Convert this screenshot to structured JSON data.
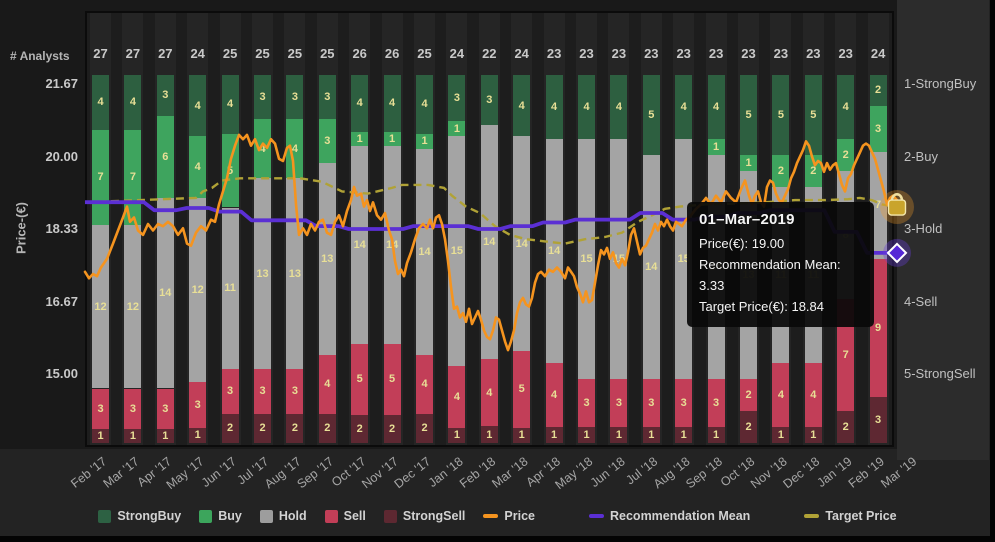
{
  "header": {
    "analysts_label": "# Analysts"
  },
  "axes": {
    "y_left": {
      "title": "Price-(€)",
      "ticks": [
        "21.67",
        "20.00",
        "18.33",
        "16.67",
        "15.00"
      ]
    },
    "y_right": {
      "labels": [
        "1-StrongBuy",
        "2-Buy",
        "3-Hold",
        "4-Sell",
        "5-StrongSell"
      ]
    }
  },
  "tooltip": {
    "date": "01–Mar–2019",
    "price": "Price(€): 19.00",
    "mean": "Recommendation Mean: 3.33",
    "target": "Target Price(€): 18.84"
  },
  "legend": [
    {
      "label": "StrongBuy",
      "color": "#2d6143",
      "type": "square"
    },
    {
      "label": "Buy",
      "color": "#3ca55c",
      "type": "square"
    },
    {
      "label": "Hold",
      "color": "#9d9d9d",
      "type": "square"
    },
    {
      "label": "Sell",
      "color": "#c23e57",
      "type": "square"
    },
    {
      "label": "StrongSell",
      "color": "#5d2831",
      "type": "square"
    },
    {
      "label": "Price",
      "color": "#f5941f",
      "type": "line"
    },
    {
      "label": "Recommendation Mean",
      "color": "#5b2fd4",
      "type": "line"
    },
    {
      "label": "Target Price",
      "color": "#b0a236",
      "type": "line"
    }
  ],
  "chart_data": {
    "type": "combo-normalized-stacked-bar-with-lines",
    "categories": [
      "Feb '17",
      "Mar '17",
      "Apr '17",
      "May '17",
      "Jun '17",
      "Jul '17",
      "Aug '17",
      "Sep '17",
      "Oct '17",
      "Nov '17",
      "Dec '17",
      "Jan '18",
      "Feb '18",
      "Mar '18",
      "Apr '18",
      "May '18",
      "Jun '18",
      "Jul '18",
      "Aug '18",
      "Sep '18",
      "Oct '18",
      "Nov '18",
      "Dec '18",
      "Jan '19",
      "Feb '19"
    ],
    "x_axis_labels": [
      "Feb '17",
      "Mar '17",
      "Apr '17",
      "May '17",
      "Jun '17",
      "Jul '17",
      "Aug '17",
      "Sep '17",
      "Oct '17",
      "Nov '17",
      "Dec '17",
      "Jan '18",
      "Feb '18",
      "Mar '18",
      "Apr '18",
      "May '18",
      "Jun '18",
      "Jul '18",
      "Aug '18",
      "Sep '18",
      "Oct '18",
      "Nov '18",
      "Dec '18",
      "Jan '19",
      "Feb '19",
      "Mar '19"
    ],
    "analysts": [
      27,
      27,
      27,
      24,
      25,
      25,
      25,
      25,
      26,
      26,
      25,
      24,
      22,
      24,
      23,
      23,
      23,
      23,
      23,
      23,
      23,
      23,
      23,
      23,
      24
    ],
    "y_left_ticks": [
      21.67,
      20.0,
      18.33,
      16.67,
      15.0
    ],
    "y_right_labels": [
      "1-StrongBuy",
      "2-Buy",
      "3-Hold",
      "4-Sell",
      "5-StrongSell"
    ],
    "series": [
      {
        "name": "StrongBuy",
        "type": "bar",
        "color": "#2d5f40",
        "values": [
          4,
          4,
          3,
          4,
          4,
          3,
          3,
          3,
          4,
          4,
          4,
          3,
          3,
          4,
          4,
          4,
          4,
          5,
          4,
          4,
          5,
          5,
          5,
          4,
          2
        ]
      },
      {
        "name": "Buy",
        "type": "bar",
        "color": "#3ea45e",
        "values": [
          7,
          7,
          6,
          4,
          5,
          4,
          4,
          3,
          1,
          1,
          1,
          1,
          0,
          0,
          0,
          0,
          0,
          0,
          0,
          1,
          1,
          2,
          2,
          2,
          3
        ]
      },
      {
        "name": "Hold",
        "type": "bar",
        "color": "#a4a4a4",
        "values": [
          12,
          12,
          14,
          12,
          11,
          13,
          13,
          13,
          14,
          14,
          14,
          15,
          14,
          14,
          14,
          15,
          15,
          14,
          15,
          14,
          13,
          11,
          11,
          8,
          7
        ]
      },
      {
        "name": "Sell",
        "type": "bar",
        "color": "#c23e58",
        "values": [
          3,
          3,
          3,
          3,
          3,
          3,
          3,
          4,
          5,
          5,
          4,
          4,
          4,
          5,
          4,
          3,
          3,
          3,
          3,
          3,
          2,
          4,
          4,
          7,
          9
        ]
      },
      {
        "name": "StrongSell",
        "type": "bar",
        "color": "#5e2832",
        "values": [
          1,
          1,
          1,
          1,
          2,
          2,
          2,
          2,
          2,
          2,
          2,
          1,
          1,
          1,
          1,
          1,
          1,
          1,
          1,
          1,
          2,
          1,
          1,
          2,
          3
        ]
      }
    ],
    "price_line": {
      "name": "Price",
      "color": "#f5941f",
      "x_unit": "px",
      "points": [
        [
          85,
          17.35
        ],
        [
          89,
          17.2
        ],
        [
          93,
          17.3
        ],
        [
          97,
          17.25
        ],
        [
          101,
          17.45
        ],
        [
          107,
          17.65
        ],
        [
          113,
          18.0
        ],
        [
          118,
          18.3
        ],
        [
          123,
          18.6
        ],
        [
          127,
          18.85
        ],
        [
          130,
          18.5
        ],
        [
          134,
          18.6
        ],
        [
          138,
          18.3
        ],
        [
          143,
          18.2
        ],
        [
          148,
          18.45
        ],
        [
          153,
          18.3
        ],
        [
          158,
          18.45
        ],
        [
          163,
          18.4
        ],
        [
          168,
          18.5
        ],
        [
          173,
          18.4
        ],
        [
          178,
          18.2
        ],
        [
          183,
          18.35
        ],
        [
          187,
          18.0
        ],
        [
          191,
          17.95
        ],
        [
          196,
          18.25
        ],
        [
          201,
          18.4
        ],
        [
          206,
          18.3
        ],
        [
          211,
          18.55
        ],
        [
          215,
          18.5
        ],
        [
          219,
          18.9
        ],
        [
          223,
          19.2
        ],
        [
          227,
          19.5
        ],
        [
          231,
          19.95
        ],
        [
          235,
          20.25
        ],
        [
          239,
          20.5
        ],
        [
          243,
          20.4
        ],
        [
          247,
          20.5
        ],
        [
          251,
          20.25
        ],
        [
          255,
          20.4
        ],
        [
          259,
          20.15
        ],
        [
          263,
          20.3
        ],
        [
          267,
          20.2
        ],
        [
          271,
          20.4
        ],
        [
          275,
          20.3
        ],
        [
          279,
          19.95
        ],
        [
          283,
          19.9
        ],
        [
          287,
          20.2
        ],
        [
          290,
          20.25
        ],
        [
          293,
          19.9
        ],
        [
          296,
          18.9
        ],
        [
          299,
          18.2
        ],
        [
          303,
          18.35
        ],
        [
          307,
          18.2
        ],
        [
          311,
          18.45
        ],
        [
          315,
          18.3
        ],
        [
          319,
          18.5
        ],
        [
          323,
          18.55
        ],
        [
          327,
          18.25
        ],
        [
          331,
          18.2
        ],
        [
          335,
          18.5
        ],
        [
          339,
          18.65
        ],
        [
          343,
          18.4
        ],
        [
          347,
          18.75
        ],
        [
          351,
          19.0
        ],
        [
          354,
          19.3
        ],
        [
          357,
          19.1
        ],
        [
          361,
          19.15
        ],
        [
          364,
          18.85
        ],
        [
          367,
          19.0
        ],
        [
          370,
          18.75
        ],
        [
          373,
          18.95
        ],
        [
          377,
          18.65
        ],
        [
          381,
          18.55
        ],
        [
          385,
          18.7
        ],
        [
          389,
          18.3
        ],
        [
          392,
          18.1
        ],
        [
          395,
          17.6
        ],
        [
          398,
          17.3
        ],
        [
          401,
          17.4
        ],
        [
          404,
          17.25
        ],
        [
          407,
          17.55
        ],
        [
          411,
          17.8
        ],
        [
          415,
          18.1
        ],
        [
          419,
          18.35
        ],
        [
          423,
          18.45
        ],
        [
          427,
          18.35
        ],
        [
          430,
          18.55
        ],
        [
          433,
          18.35
        ],
        [
          436,
          18.6
        ],
        [
          439,
          18.65
        ],
        [
          442,
          18.45
        ],
        [
          445,
          18.1
        ],
        [
          448,
          17.6
        ],
        [
          451,
          17.0
        ],
        [
          454,
          16.5
        ],
        [
          457,
          16.55
        ],
        [
          460,
          16.3
        ],
        [
          463,
          16.4
        ],
        [
          466,
          16.2
        ],
        [
          469,
          16.5
        ],
        [
          472,
          16.15
        ],
        [
          475,
          16.3
        ],
        [
          478,
          16.45
        ],
        [
          481,
          16.25
        ],
        [
          484,
          16.0
        ],
        [
          487,
          15.85
        ],
        [
          490,
          15.8
        ],
        [
          493,
          16.0
        ],
        [
          496,
          16.3
        ],
        [
          499,
          16.25
        ],
        [
          502,
          16.0
        ],
        [
          505,
          15.75
        ],
        [
          508,
          15.55
        ],
        [
          511,
          15.75
        ],
        [
          514,
          16.0
        ],
        [
          517,
          16.4
        ],
        [
          520,
          16.65
        ],
        [
          523,
          16.75
        ],
        [
          526,
          16.6
        ],
        [
          529,
          16.55
        ],
        [
          532,
          16.75
        ],
        [
          535,
          17.1
        ],
        [
          538,
          17.3
        ],
        [
          541,
          17.35
        ],
        [
          545,
          17.25
        ],
        [
          549,
          17.4
        ],
        [
          553,
          17.35
        ],
        [
          557,
          17.45
        ],
        [
          561,
          17.35
        ],
        [
          565,
          17.2
        ],
        [
          568,
          17.45
        ],
        [
          571,
          17.35
        ],
        [
          574,
          17.25
        ],
        [
          577,
          17.0
        ],
        [
          580,
          16.85
        ],
        [
          583,
          16.65
        ],
        [
          586,
          16.9
        ],
        [
          589,
          16.65
        ],
        [
          592,
          16.7
        ],
        [
          595,
          17.1
        ],
        [
          598,
          17.5
        ],
        [
          601,
          17.85
        ],
        [
          604,
          17.75
        ],
        [
          607,
          17.9
        ],
        [
          610,
          17.65
        ],
        [
          613,
          17.8
        ],
        [
          616,
          17.55
        ],
        [
          619,
          17.45
        ],
        [
          622,
          17.65
        ],
        [
          625,
          17.5
        ],
        [
          628,
          17.8
        ],
        [
          631,
          18.2
        ],
        [
          634,
          18.35
        ],
        [
          637,
          18.05
        ],
        [
          640,
          17.75
        ],
        [
          643,
          17.9
        ],
        [
          646,
          17.95
        ],
        [
          649,
          18.1
        ],
        [
          652,
          18.25
        ],
        [
          655,
          18.45
        ],
        [
          658,
          18.3
        ],
        [
          661,
          18.5
        ],
        [
          664,
          18.4
        ],
        [
          667,
          18.55
        ],
        [
          670,
          18.4
        ],
        [
          673,
          18.3
        ],
        [
          676,
          18.5
        ],
        [
          679,
          18.45
        ],
        [
          682,
          18.4
        ],
        [
          686,
          18.55
        ],
        [
          691,
          18.65
        ],
        [
          696,
          18.8
        ],
        [
          701,
          18.9
        ],
        [
          706,
          19.05
        ],
        [
          711,
          18.9
        ],
        [
          716,
          19.1
        ],
        [
          721,
          18.95
        ],
        [
          726,
          19.2
        ],
        [
          731,
          19.05
        ],
        [
          736,
          18.95
        ],
        [
          741,
          19.25
        ],
        [
          745,
          19.45
        ],
        [
          749,
          19.1
        ],
        [
          752,
          18.9
        ],
        [
          755,
          19.1
        ],
        [
          758,
          19.2
        ],
        [
          761,
          18.95
        ],
        [
          764,
          18.85
        ],
        [
          767,
          19.3
        ],
        [
          770,
          19.45
        ],
        [
          773,
          19.4
        ],
        [
          776,
          19.15
        ],
        [
          779,
          19.0
        ],
        [
          782,
          18.95
        ],
        [
          785,
          19.1
        ],
        [
          788,
          19.25
        ],
        [
          791,
          19.5
        ],
        [
          794,
          19.65
        ],
        [
          797,
          19.85
        ],
        [
          800,
          20.0
        ],
        [
          803,
          20.15
        ],
        [
          806,
          20.35
        ],
        [
          809,
          20.25
        ],
        [
          812,
          20.0
        ],
        [
          815,
          19.8
        ],
        [
          818,
          19.9
        ],
        [
          821,
          19.85
        ],
        [
          824,
          19.65
        ],
        [
          827,
          19.85
        ],
        [
          830,
          19.7
        ],
        [
          833,
          19.8
        ],
        [
          836,
          19.85
        ],
        [
          839,
          19.6
        ],
        [
          842,
          19.35
        ],
        [
          845,
          19.2
        ],
        [
          848,
          19.5
        ],
        [
          851,
          19.6
        ],
        [
          854,
          19.8
        ],
        [
          857,
          19.95
        ],
        [
          860,
          20.1
        ],
        [
          863,
          20.25
        ],
        [
          866,
          20.3
        ],
        [
          869,
          20.25
        ],
        [
          872,
          20.1
        ],
        [
          875,
          19.95
        ],
        [
          878,
          19.7
        ],
        [
          881,
          19.45
        ],
        [
          884,
          19.2
        ],
        [
          887,
          18.9
        ],
        [
          890,
          19.05
        ],
        [
          893,
          19.1
        ],
        [
          897,
          19.0
        ]
      ]
    },
    "recommendation_mean": {
      "name": "Recommendation Mean",
      "color": "#5b2fd4",
      "values": [
        2.63,
        2.63,
        2.74,
        2.71,
        2.76,
        2.88,
        2.88,
        2.96,
        3.0,
        3.0,
        2.96,
        2.96,
        3.0,
        2.96,
        2.91,
        2.87,
        2.87,
        2.78,
        2.87,
        2.83,
        2.78,
        2.74,
        2.74,
        3.04,
        3.33
      ],
      "final": 3.33
    },
    "target_price": {
      "name": "Target Price",
      "color": "#b0a236",
      "x_unit": "px",
      "points": [
        [
          85,
          18.95
        ],
        [
          140,
          19.0
        ],
        [
          196,
          19.05
        ],
        [
          203,
          19.2
        ],
        [
          212,
          19.28
        ],
        [
          222,
          19.45
        ],
        [
          240,
          19.5
        ],
        [
          300,
          19.5
        ],
        [
          322,
          19.42
        ],
        [
          342,
          19.2
        ],
        [
          368,
          19.15
        ],
        [
          392,
          19.28
        ],
        [
          402,
          19.35
        ],
        [
          428,
          19.35
        ],
        [
          444,
          19.28
        ],
        [
          452,
          19.1
        ],
        [
          466,
          18.85
        ],
        [
          480,
          18.7
        ],
        [
          495,
          18.4
        ],
        [
          510,
          18.2
        ],
        [
          526,
          18.1
        ],
        [
          545,
          18.05
        ],
        [
          565,
          18.0
        ],
        [
          585,
          18.1
        ],
        [
          605,
          18.15
        ],
        [
          622,
          18.25
        ],
        [
          638,
          18.5
        ],
        [
          652,
          18.65
        ],
        [
          665,
          18.8
        ],
        [
          680,
          18.85
        ],
        [
          705,
          18.9
        ],
        [
          735,
          18.92
        ],
        [
          765,
          18.95
        ],
        [
          795,
          19.0
        ],
        [
          825,
          19.0
        ],
        [
          848,
          19.02
        ],
        [
          860,
          19.05
        ],
        [
          872,
          19.0
        ],
        [
          882,
          18.9
        ],
        [
          895,
          18.84
        ]
      ],
      "end_marker_value": 18.84
    },
    "tooltip_point": {
      "date": "01–Mar–2019",
      "price": 19.0,
      "recommendation_mean": 3.33,
      "target_price": 18.84
    }
  }
}
